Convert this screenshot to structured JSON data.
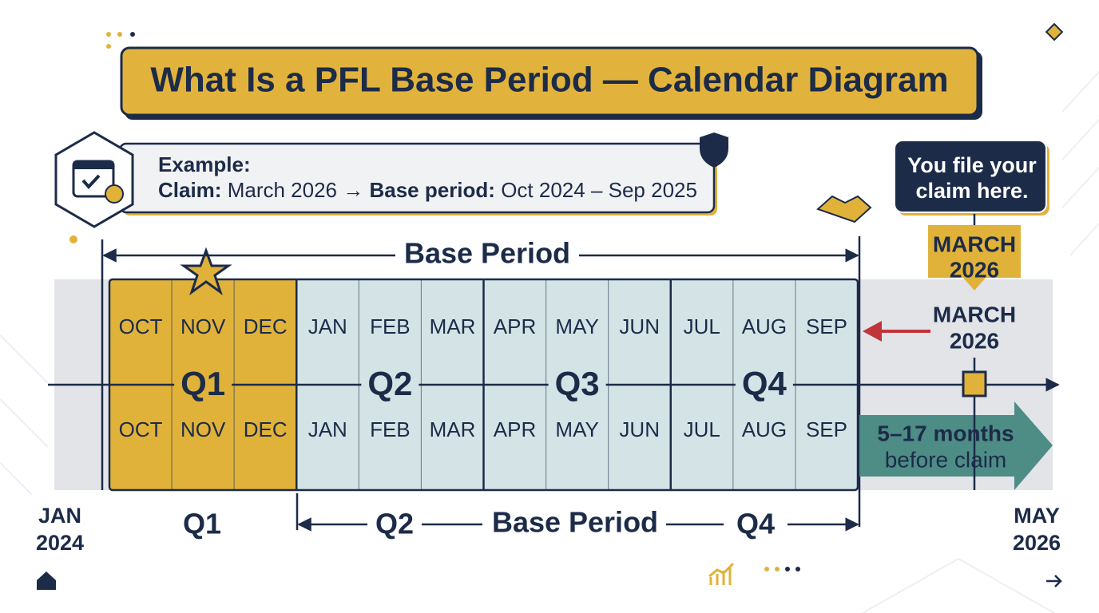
{
  "title": "What Is a PFL Base Period — Calendar Diagram",
  "example": {
    "heading": "Example:",
    "claim_label": "Claim:",
    "claim_value": "March 2026 →",
    "base_label": "Base period:",
    "base_value": "Oct 2024 – Sep 2025"
  },
  "callout": [
    "You file your",
    "claim here."
  ],
  "claim_badge": [
    "MARCH",
    "2026"
  ],
  "claim_marker": [
    "MARCH",
    "2026"
  ],
  "top_bracket_label": "Base Period",
  "months_top": [
    "OCT",
    "NOV",
    "DEC",
    "JAN",
    "FEB",
    "MAR",
    "APR",
    "MAY",
    "JUN",
    "JUL",
    "AUG",
    "SEP"
  ],
  "months_bottom": [
    "OCT",
    "NOV",
    "DEC",
    "JAN",
    "FEB",
    "MAR",
    "APR",
    "MAY",
    "JUN",
    "JUL",
    "AUG",
    "SEP"
  ],
  "quarters": [
    "Q1",
    "Q2",
    "Q3",
    "Q4"
  ],
  "lookback": [
    "5–17 months",
    "before claim"
  ],
  "axis_start": [
    "JAN",
    "2024"
  ],
  "axis_end": [
    "MAY",
    "2026"
  ],
  "bottom_bracket": {
    "start": "Q1",
    "left": "Q2",
    "label": "Base Period",
    "right": "Q4"
  }
}
